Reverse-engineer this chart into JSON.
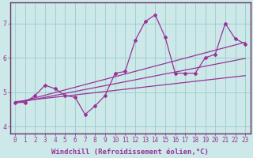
{
  "xlabel": "Windchill (Refroidissement éolien,°C)",
  "main_line_x": [
    0,
    1,
    2,
    3,
    4,
    5,
    6,
    7,
    8,
    9,
    10,
    11,
    12,
    13,
    14,
    15,
    16,
    17,
    18,
    19,
    20,
    21,
    22,
    23
  ],
  "main_line_y": [
    4.7,
    4.7,
    4.9,
    5.2,
    5.1,
    4.9,
    4.85,
    4.35,
    4.6,
    4.9,
    5.55,
    5.6,
    6.5,
    7.05,
    7.25,
    6.6,
    5.55,
    5.55,
    5.55,
    6.0,
    6.1,
    7.0,
    6.55,
    6.4
  ],
  "reg_line1_x": [
    0,
    23
  ],
  "reg_line1_y": [
    4.68,
    5.98
  ],
  "reg_line2_x": [
    0,
    23
  ],
  "reg_line2_y": [
    4.68,
    6.45
  ],
  "reg_line3_x": [
    0,
    23
  ],
  "reg_line3_y": [
    4.72,
    5.48
  ],
  "line_color": "#993399",
  "bg_color": "#cce8e8",
  "grid_color": "#99cccc",
  "border_color": "#663366",
  "ylim": [
    3.8,
    7.6
  ],
  "xlim": [
    -0.5,
    23.5
  ],
  "yticks": [
    4,
    5,
    6,
    7
  ],
  "x_ticks": [
    0,
    1,
    2,
    3,
    4,
    5,
    6,
    7,
    8,
    9,
    10,
    11,
    12,
    13,
    14,
    15,
    16,
    17,
    18,
    19,
    20,
    21,
    22,
    23
  ],
  "tick_fontsize": 5.5,
  "label_fontsize": 6.5
}
